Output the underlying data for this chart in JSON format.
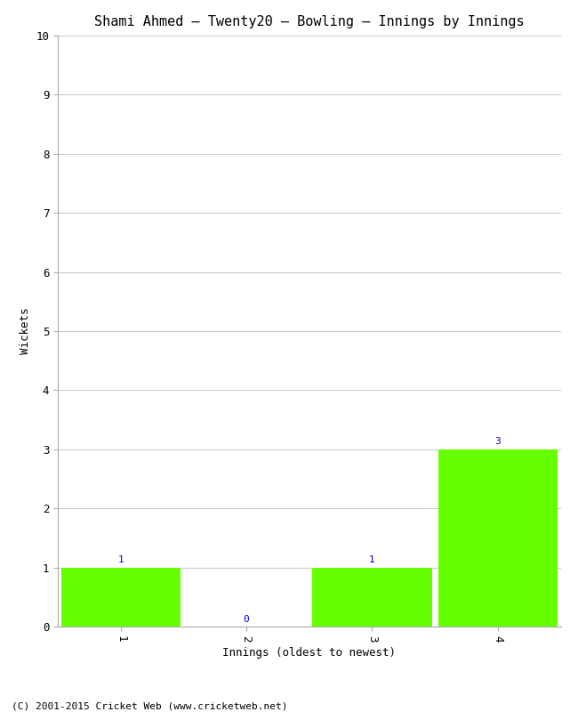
{
  "title": "Shami Ahmed – Twenty20 – Bowling – Innings by Innings",
  "xlabel": "Innings (oldest to newest)",
  "ylabel": "Wickets",
  "categories": [
    "1",
    "2",
    "3",
    "4"
  ],
  "values": [
    1,
    0,
    1,
    3
  ],
  "bar_color": "#66ff00",
  "value_color": "#0000cc",
  "ylim": [
    0,
    10
  ],
  "yticks": [
    0,
    1,
    2,
    3,
    4,
    5,
    6,
    7,
    8,
    9,
    10
  ],
  "background_color": "#ffffff",
  "grid_color": "#cccccc",
  "footer": "(C) 2001-2015 Cricket Web (www.cricketweb.net)",
  "title_fontsize": 11,
  "axis_fontsize": 9,
  "tick_fontsize": 9,
  "footer_fontsize": 8,
  "value_fontsize": 8
}
